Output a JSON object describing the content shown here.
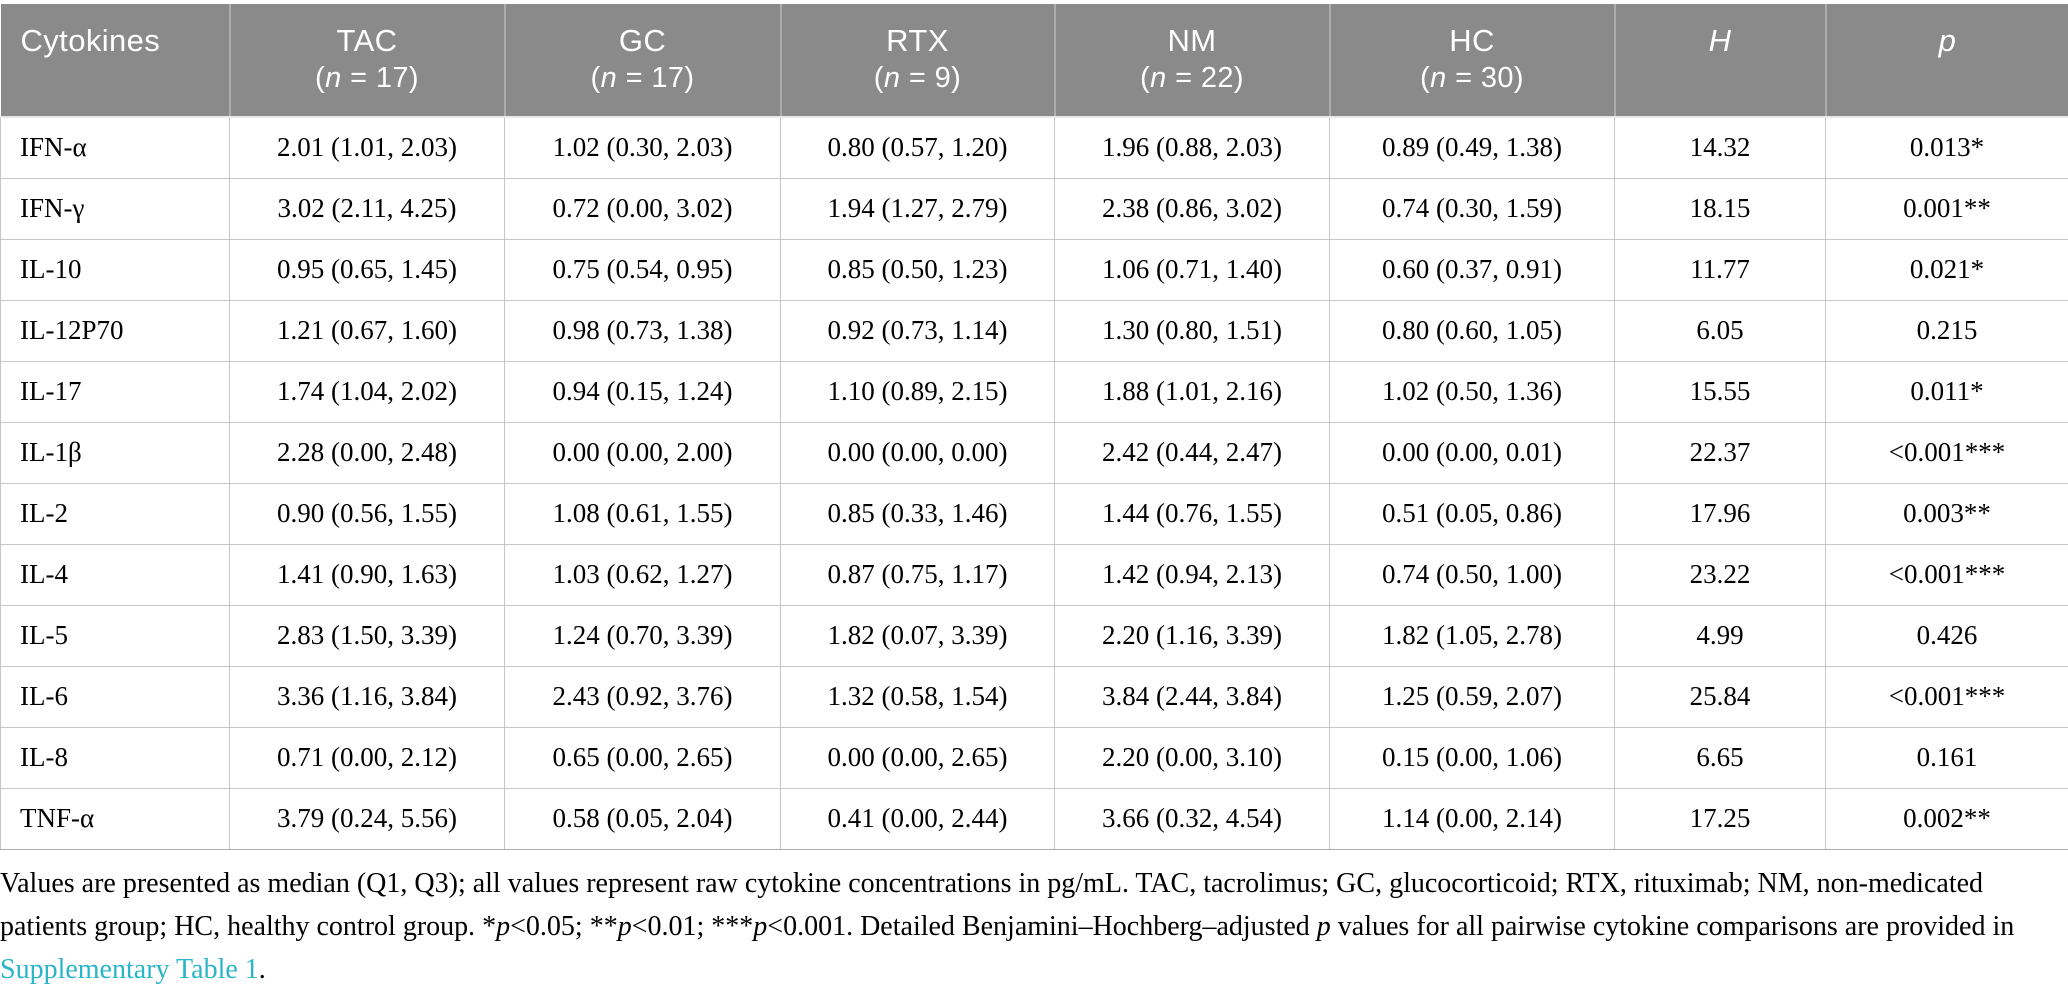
{
  "table": {
    "header": {
      "cytokines_label": "Cytokines",
      "columns": [
        {
          "label": "TAC",
          "sub_pre": "(",
          "sub_n": "n",
          "sub_post": " = 17)"
        },
        {
          "label": "GC",
          "sub_pre": "(",
          "sub_n": "n",
          "sub_post": " = 17)"
        },
        {
          "label": "RTX",
          "sub_pre": "(",
          "sub_n": "n",
          "sub_post": " = 9)"
        },
        {
          "label": "NM",
          "sub_pre": "(",
          "sub_n": "n",
          "sub_post": " = 22)"
        },
        {
          "label": "HC",
          "sub_pre": "(",
          "sub_n": "n",
          "sub_post": " = 30)"
        }
      ],
      "h_label": "H",
      "p_label": "p"
    },
    "rows": [
      {
        "cytokine": "IFN-α",
        "tac": "2.01 (1.01, 2.03)",
        "gc": "1.02 (0.30, 2.03)",
        "rtx": "0.80 (0.57, 1.20)",
        "nm": "1.96 (0.88, 2.03)",
        "hc": "0.89 (0.49, 1.38)",
        "h": "14.32",
        "p": "0.013*"
      },
      {
        "cytokine": "IFN-γ",
        "tac": "3.02 (2.11, 4.25)",
        "gc": "0.72 (0.00, 3.02)",
        "rtx": "1.94 (1.27, 2.79)",
        "nm": "2.38 (0.86, 3.02)",
        "hc": "0.74 (0.30, 1.59)",
        "h": "18.15",
        "p": "0.001**"
      },
      {
        "cytokine": "IL-10",
        "tac": "0.95 (0.65, 1.45)",
        "gc": "0.75 (0.54, 0.95)",
        "rtx": "0.85 (0.50, 1.23)",
        "nm": "1.06 (0.71, 1.40)",
        "hc": "0.60 (0.37, 0.91)",
        "h": "11.77",
        "p": "0.021*"
      },
      {
        "cytokine": "IL-12P70",
        "tac": "1.21 (0.67, 1.60)",
        "gc": "0.98 (0.73, 1.38)",
        "rtx": "0.92 (0.73, 1.14)",
        "nm": "1.30 (0.80, 1.51)",
        "hc": "0.80 (0.60, 1.05)",
        "h": "6.05",
        "p": "0.215"
      },
      {
        "cytokine": "IL-17",
        "tac": "1.74 (1.04, 2.02)",
        "gc": "0.94 (0.15, 1.24)",
        "rtx": "1.10 (0.89, 2.15)",
        "nm": "1.88 (1.01, 2.16)",
        "hc": "1.02 (0.50, 1.36)",
        "h": "15.55",
        "p": "0.011*"
      },
      {
        "cytokine": "IL-1β",
        "tac": "2.28 (0.00, 2.48)",
        "gc": "0.00 (0.00, 2.00)",
        "rtx": "0.00 (0.00, 0.00)",
        "nm": "2.42 (0.44, 2.47)",
        "hc": "0.00 (0.00, 0.01)",
        "h": "22.37",
        "p": "<0.001***"
      },
      {
        "cytokine": "IL-2",
        "tac": "0.90 (0.56, 1.55)",
        "gc": "1.08 (0.61, 1.55)",
        "rtx": "0.85 (0.33, 1.46)",
        "nm": "1.44 (0.76, 1.55)",
        "hc": "0.51 (0.05, 0.86)",
        "h": "17.96",
        "p": "0.003**"
      },
      {
        "cytokine": "IL-4",
        "tac": "1.41 (0.90, 1.63)",
        "gc": "1.03 (0.62, 1.27)",
        "rtx": "0.87 (0.75, 1.17)",
        "nm": "1.42 (0.94, 2.13)",
        "hc": "0.74 (0.50, 1.00)",
        "h": "23.22",
        "p": "<0.001***"
      },
      {
        "cytokine": "IL-5",
        "tac": "2.83 (1.50, 3.39)",
        "gc": "1.24 (0.70, 3.39)",
        "rtx": "1.82 (0.07, 3.39)",
        "nm": "2.20 (1.16, 3.39)",
        "hc": "1.82 (1.05, 2.78)",
        "h": "4.99",
        "p": "0.426"
      },
      {
        "cytokine": "IL-6",
        "tac": "3.36 (1.16, 3.84)",
        "gc": "2.43 (0.92, 3.76)",
        "rtx": "1.32 (0.58, 1.54)",
        "nm": "3.84 (2.44, 3.84)",
        "hc": "1.25 (0.59, 2.07)",
        "h": "25.84",
        "p": "<0.001***"
      },
      {
        "cytokine": "IL-8",
        "tac": "0.71 (0.00, 2.12)",
        "gc": "0.65 (0.00, 2.65)",
        "rtx": "0.00 (0.00, 2.65)",
        "nm": "2.20 (0.00, 3.10)",
        "hc": "0.15 (0.00, 1.06)",
        "h": "6.65",
        "p": "0.161"
      },
      {
        "cytokine": "TNF-α",
        "tac": "3.79 (0.24, 5.56)",
        "gc": "0.58 (0.05, 2.04)",
        "rtx": "0.41 (0.00, 2.44)",
        "nm": "3.66 (0.32, 4.54)",
        "hc": "1.14 (0.00, 2.14)",
        "h": "17.25",
        "p": "0.002**"
      }
    ]
  },
  "footnote": {
    "segments": [
      {
        "text": "Values are presented as median (Q1, Q3); all values represent raw cytokine concentrations in pg/mL. TAC, tacrolimus; GC, glucocorticoid; RTX, rituximab; NM, non-medicated patients group; HC, healthy control group. *",
        "style": "normal"
      },
      {
        "text": "p",
        "style": "italic"
      },
      {
        "text": "<0.05; **",
        "style": "normal"
      },
      {
        "text": "p",
        "style": "italic"
      },
      {
        "text": "<0.01; ***",
        "style": "normal"
      },
      {
        "text": "p",
        "style": "italic"
      },
      {
        "text": "<0.001. Detailed Benjamini–Hochberg–adjusted ",
        "style": "normal"
      },
      {
        "text": "p",
        "style": "italic"
      },
      {
        "text": " values for all pairwise cytokine comparisons are provided in ",
        "style": "normal"
      },
      {
        "text": "Supplementary Table 1",
        "style": "link"
      },
      {
        "text": ".",
        "style": "normal"
      }
    ]
  },
  "colors": {
    "header_background": "#8a8a8a",
    "header_text": "#ffffff",
    "body_border": "#c6c6c6",
    "link": "#2bb5c8"
  }
}
